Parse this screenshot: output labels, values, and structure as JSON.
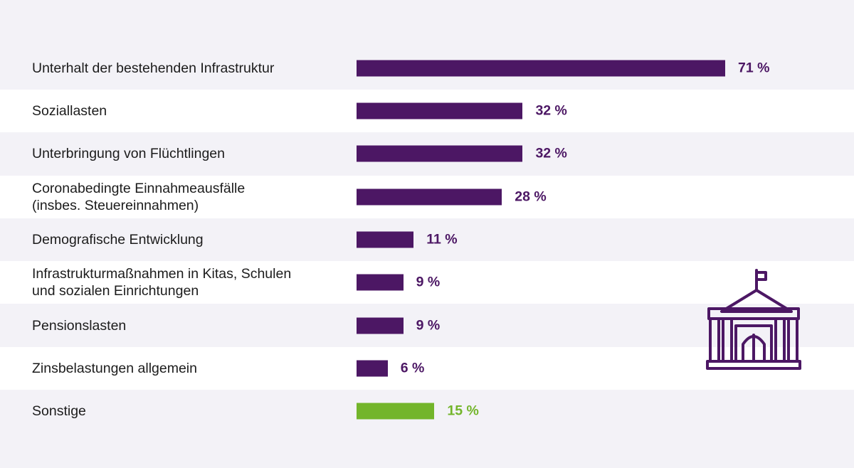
{
  "chart_data": {
    "type": "bar",
    "orientation": "horizontal",
    "categories": [
      "Unterhalt der bestehenden Infrastruktur",
      "Soziallasten",
      "Unterbringung von Flüchtlingen",
      "Coronabedingte Einnahmeausfälle\n(insbes. Steuereinnahmen)",
      "Demografische Entwicklung",
      "Infrastrukturmaßnahmen in Kitas, Schulen\nund sozialen Einrichtungen",
      "Pensionslasten",
      "Zinsbelastungen allgemein",
      "Sonstige"
    ],
    "values": [
      71,
      32,
      32,
      28,
      11,
      9,
      9,
      6,
      15
    ],
    "value_labels": [
      "71 %",
      "32 %",
      "32 %",
      "28 %",
      "11 %",
      "9 %",
      "9 %",
      "6 %",
      "15 %"
    ],
    "bar_colors": [
      "#4c1764",
      "#4c1764",
      "#4c1764",
      "#4c1764",
      "#4c1764",
      "#4c1764",
      "#4c1764",
      "#4c1764",
      "#73b52b"
    ],
    "xlim": [
      0,
      100
    ],
    "grid": false
  },
  "colors": {
    "primary": "#4c1764",
    "highlight": "#73b52b",
    "stripe_light": "#f3f2f7",
    "stripe_white": "#ffffff"
  },
  "icon": "building-with-flag-icon"
}
